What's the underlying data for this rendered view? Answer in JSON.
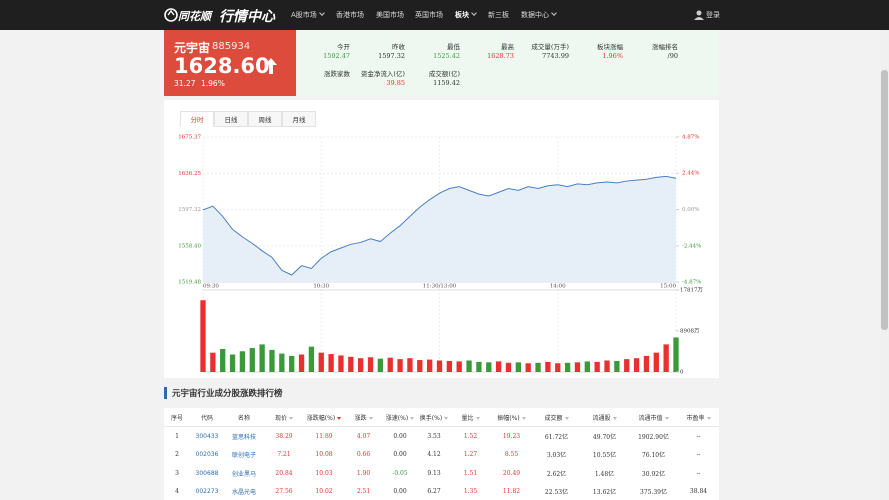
{
  "nav": {
    "brand": "同花顺",
    "title": "行情中心",
    "items": [
      "A股市场",
      "香港市场",
      "美国市场",
      "英国市场",
      "板块",
      "新三板",
      "数据中心"
    ],
    "login": "登录"
  },
  "quote": {
    "name": "元宇宙",
    "code": "885934",
    "price": "1628.60",
    "change": "31.27",
    "change_pct": "1.96%"
  },
  "stats": [
    {
      "label": "今开",
      "value": "1592.47",
      "color": "#3a9a3a"
    },
    {
      "label": "昨收",
      "value": "1597.32"
    },
    {
      "label": "最低",
      "value": "1525.42",
      "color": "#3a9a3a"
    },
    {
      "label": "最高",
      "value": "1628.73",
      "color": "#e93030"
    },
    {
      "label": "成交量(万手)",
      "value": "7743.99"
    },
    {
      "label": "板块涨幅",
      "value": "1.96%",
      "color": "#e93030"
    },
    {
      "label": "涨幅排名",
      "value": "/90"
    },
    {
      "label": "涨跌家数"
    },
    {
      "label": "资金净流入(亿)",
      "value": "39.85",
      "color": "#e93030"
    },
    {
      "label": "成交额(亿)",
      "value": "1159.42"
    }
  ],
  "tabs": [
    "分时",
    "日线",
    "周线",
    "月线"
  ],
  "chart_data": {
    "type": "line",
    "color": "#4a7fc1",
    "fill": "#e6eef8",
    "up_color": "#e93030",
    "down_color": "#3a9a3a",
    "grid": true,
    "x": [
      0,
      5,
      10,
      15,
      20,
      25,
      30,
      35,
      40,
      45,
      50,
      55,
      60,
      65,
      70,
      75,
      80,
      85,
      90,
      95,
      100,
      105,
      110,
      115,
      120,
      125,
      130,
      135,
      140,
      145,
      150,
      155,
      160,
      165,
      170,
      175,
      180,
      185,
      190,
      195,
      200,
      205,
      210,
      215,
      220,
      225,
      230,
      235,
      240
    ],
    "values": [
      1597,
      1601,
      1590,
      1576,
      1568,
      1561,
      1553,
      1546,
      1532,
      1527,
      1537,
      1534,
      1545,
      1552,
      1556,
      1560,
      1562,
      1566,
      1563,
      1572,
      1580,
      1590,
      1600,
      1608,
      1615,
      1620,
      1622,
      1618,
      1614,
      1612,
      1616,
      1620,
      1618,
      1622,
      1620,
      1623,
      1624,
      1622,
      1625,
      1624,
      1626,
      1627,
      1626,
      1628,
      1629,
      1630,
      1632,
      1633,
      1631
    ],
    "xlim": [
      0,
      240
    ],
    "xticks": [
      {
        "value": 0,
        "label": "09:30"
      },
      {
        "value": 60,
        "label": "10:30"
      },
      {
        "value": 120,
        "label": "11:30/13:00"
      },
      {
        "value": 180,
        "label": "14:00"
      },
      {
        "value": 240,
        "label": "15:00"
      }
    ],
    "ylim": [
      1519.48,
      1675.37
    ],
    "yticks": [
      1675.37,
      1636.25,
      1597.32,
      {
        "value": 1558.4,
        "label": "1558.40"
      },
      1519.48
    ],
    "y2lim": [
      -4.87,
      4.87
    ],
    "y2ticks": [
      {
        "value": 4.87,
        "label": "4.87%"
      },
      {
        "value": 2.44,
        "label": "2.44%"
      },
      {
        "value": 0,
        "label": "0.00%"
      },
      {
        "value": -2.44,
        "label": "-2.44%"
      },
      {
        "value": -4.87,
        "label": "-4.87%"
      }
    ],
    "volume": {
      "values": [
        15600,
        4200,
        5000,
        3800,
        4500,
        5200,
        6000,
        4800,
        4000,
        3500,
        3800,
        5500,
        4200,
        3900,
        3600,
        3300,
        3000,
        3200,
        2900,
        3100,
        2800,
        3000,
        2600,
        2700,
        2500,
        2400,
        2300,
        2500,
        2200,
        2100,
        2300,
        2000,
        2100,
        1900,
        2000,
        2200,
        1900,
        2000,
        2100,
        2300,
        2200,
        2500,
        2400,
        2800,
        3000,
        3500,
        4200,
        6000,
        7500
      ],
      "ylim": [
        0,
        17817
      ],
      "yticks": [
        {
          "value": 17817,
          "label": "17817万"
        },
        {
          "value": 8908,
          "label": "8908万"
        },
        0
      ]
    }
  },
  "table": {
    "title": "元宇宙行业成分股涨跌排行榜",
    "headers": [
      "序号",
      "代码",
      "名称",
      "现价",
      "涨跌幅(%)",
      "涨跌",
      "涨速(%)",
      "换手(%)",
      "量比",
      "振幅(%)",
      "成交额",
      "流通股",
      "流通市值",
      "市盈率"
    ],
    "rows": [
      [
        "1",
        "300433",
        "蓝思科技",
        "38.29",
        "11.89",
        "4.07",
        "0.00",
        "3.53",
        "1.52",
        "19.23",
        "61.72亿",
        "49.70亿",
        "1902.90亿",
        "--"
      ],
      [
        "2",
        "002036",
        "联创电子",
        "7.21",
        "10.08",
        "0.66",
        "0.00",
        "4.12",
        "1.27",
        "8.55",
        "3.03亿",
        "10.55亿",
        "76.10亿",
        "--"
      ],
      [
        "3",
        "300688",
        "创业黑马",
        "20.84",
        "10.03",
        "1.90",
        "-0.05",
        "9.13",
        "1.51",
        "20.49",
        "2.62亿",
        "1.48亿",
        "30.92亿",
        "--"
      ],
      [
        "4",
        "002273",
        "水晶光电",
        "27.56",
        "10.02",
        "2.51",
        "0.00",
        "6.27",
        "1.35",
        "11.82",
        "22.53亿",
        "13.62亿",
        "375.39亿",
        "38.84"
      ]
    ]
  }
}
